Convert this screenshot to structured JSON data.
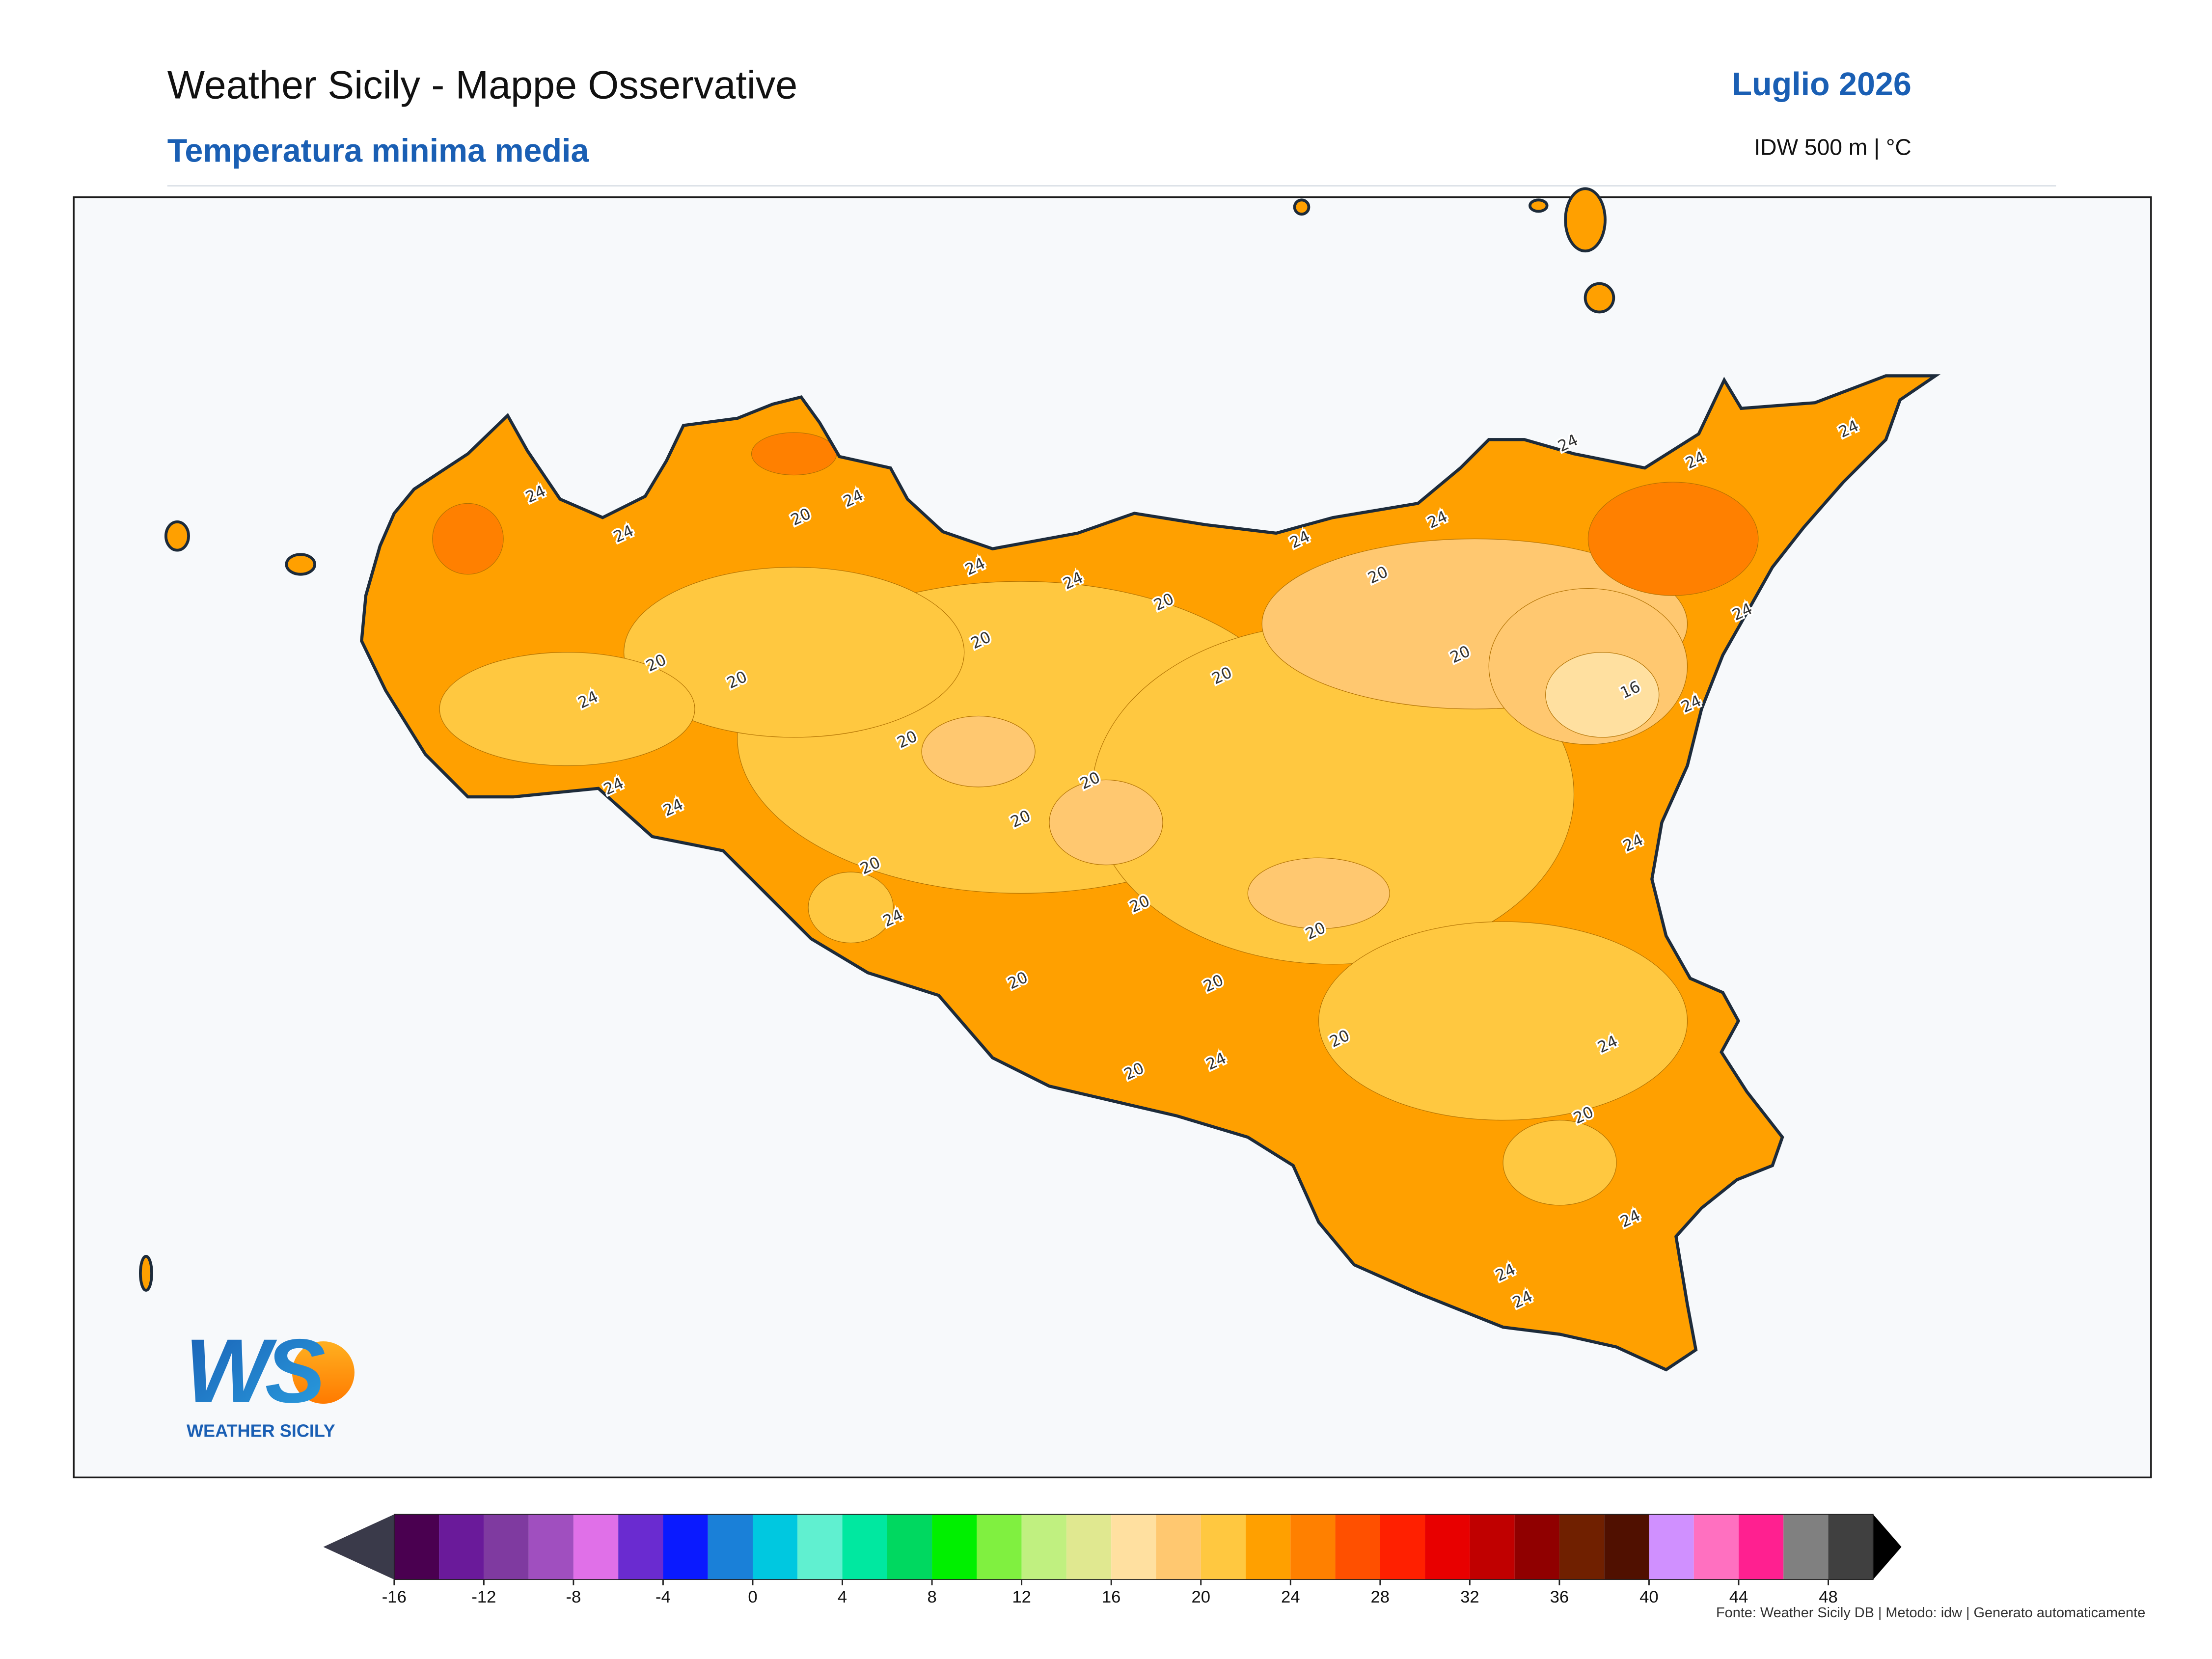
{
  "header": {
    "title": "Weather Sicily - Mappe Osservative",
    "subtitle": "Temperatura minima media",
    "period": "Luglio 2026",
    "method": "IDW 500 m | °C"
  },
  "map": {
    "contour_labels": [
      24,
      24,
      24,
      20,
      24,
      24,
      20,
      20,
      20,
      20,
      24,
      20,
      20,
      20,
      20,
      24,
      20,
      20,
      20,
      20,
      20,
      24,
      20,
      24,
      24,
      24,
      20,
      20,
      16,
      24,
      24,
      24,
      24,
      24,
      24,
      24,
      24,
      20,
      24,
      24,
      20,
      24
    ]
  },
  "colorbar": {
    "xlim": [
      -16,
      50
    ],
    "bounds": [
      -16,
      -14,
      -12,
      -10,
      -8,
      -6,
      -4,
      -2,
      0,
      2,
      4,
      6,
      8,
      10,
      12,
      14,
      16,
      18,
      20,
      22,
      24,
      26,
      28,
      30,
      32,
      34,
      36,
      38,
      40,
      42,
      44,
      46,
      48,
      50
    ],
    "colors": [
      "#4a0050",
      "#6a1a9a",
      "#7f3aa0",
      "#a04fbf",
      "#e070e8",
      "#6a2bd0",
      "#0a1aff",
      "#1a80d8",
      "#00c8e0",
      "#60f0d0",
      "#00e8a0",
      "#00d860",
      "#00f000",
      "#80f040",
      "#c0f080",
      "#e0e890",
      "#ffe0a0",
      "#ffc870",
      "#ffc840",
      "#ffa000",
      "#ff8000",
      "#ff5000",
      "#ff2000",
      "#e80000",
      "#c00000",
      "#900000",
      "#702000",
      "#501000",
      "#d090ff",
      "#ff70c0",
      "#ff2090",
      "#808080",
      "#404040"
    ],
    "extend_colors": [
      "#3a3a4a",
      "#000000"
    ],
    "ticks": [
      -16,
      -12,
      -8,
      -4,
      0,
      4,
      8,
      12,
      16,
      20,
      24,
      28,
      32,
      36,
      40,
      44,
      48
    ]
  },
  "logo": {
    "mark": "WS",
    "name": "WEATHER SICILY"
  },
  "footer": "Fonte: Weather Sicily DB | Metodo: idw | Generato automaticamente"
}
